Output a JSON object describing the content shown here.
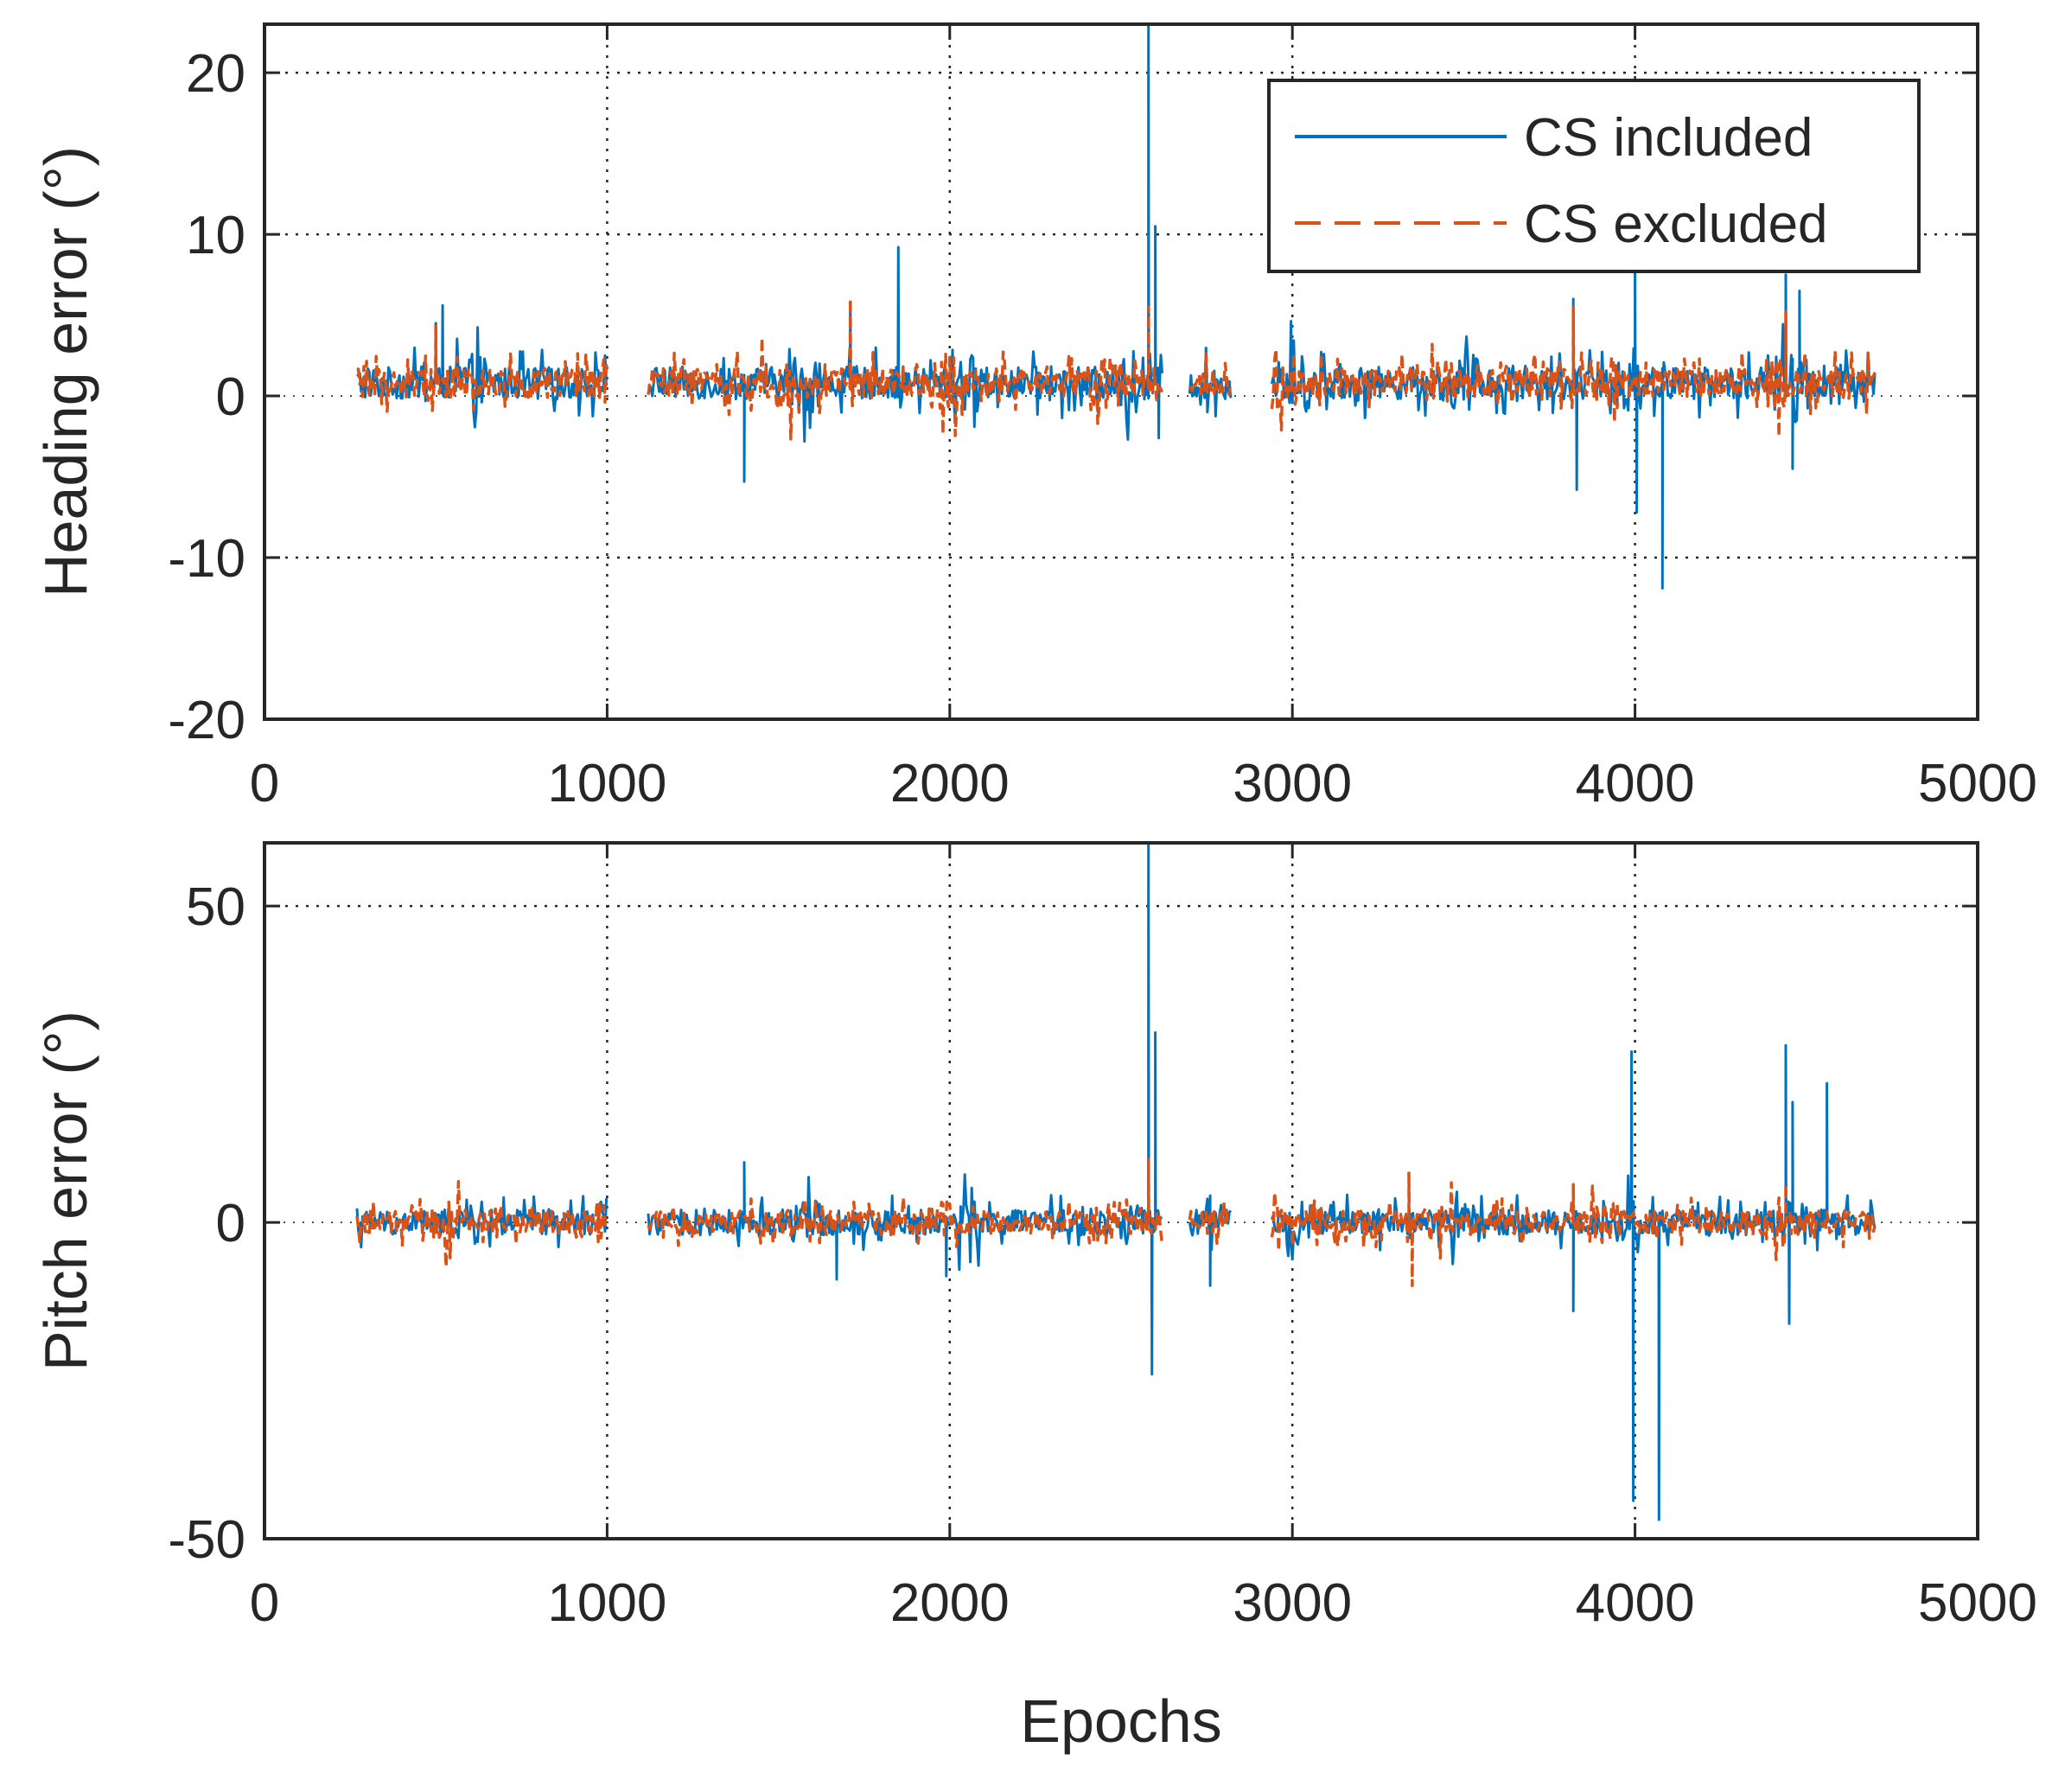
{
  "chart_data": [
    {
      "type": "line",
      "ylabel": "Heading error (°)",
      "xlabel": "",
      "xlim": [
        0,
        5000
      ],
      "ylim": [
        -20,
        23
      ],
      "xticks": [
        "0",
        "1000",
        "2000",
        "3000",
        "4000",
        "5000"
      ],
      "yticks": [
        "-20",
        "-10",
        "0",
        "10",
        "20"
      ],
      "grid": true,
      "legend": {
        "placement": "top-right",
        "entries": [
          "CS included",
          "CS excluded"
        ]
      },
      "series": [
        {
          "name": "CS included",
          "color": "#0072BD",
          "style": "solid"
        },
        {
          "name": "CS excluded",
          "color": "#D95319",
          "style": "dashed"
        }
      ],
      "segments": [
        [
          270,
          1000
        ],
        [
          1120,
          2620
        ],
        [
          2700,
          2820
        ],
        [
          2940,
          4700
        ]
      ],
      "base_level": 0.8,
      "noise_amplitude": 1.0,
      "peaks": {
        "CS included": [
          [
            500,
            4.5
          ],
          [
            520,
            5.6
          ],
          [
            1400,
            -5.3
          ],
          [
            1710,
            5.8
          ],
          [
            1850,
            9.2
          ],
          [
            2580,
            23.0
          ],
          [
            2600,
            10.5
          ],
          [
            2610,
            -2.6
          ],
          [
            3820,
            6.0
          ],
          [
            3830,
            -5.8
          ],
          [
            4000,
            8.0
          ],
          [
            4005,
            -7.2
          ],
          [
            4080,
            -11.9
          ],
          [
            4440,
            7.5
          ],
          [
            4460,
            -4.5
          ],
          [
            4480,
            6.5
          ]
        ],
        "CS excluded": [
          [
            500,
            4.3
          ],
          [
            1710,
            6.0
          ],
          [
            2580,
            5.5
          ],
          [
            3820,
            5.5
          ],
          [
            4440,
            5.2
          ]
        ]
      }
    },
    {
      "type": "line",
      "ylabel": "Pitch error (°)",
      "xlabel": "Epochs",
      "xlim": [
        0,
        5000
      ],
      "ylim": [
        -50,
        60
      ],
      "xticks": [
        "0",
        "1000",
        "2000",
        "3000",
        "4000",
        "5000"
      ],
      "yticks": [
        "-50",
        "0",
        "50"
      ],
      "grid": true,
      "series": [
        {
          "name": "CS included",
          "color": "#0072BD",
          "style": "solid"
        },
        {
          "name": "CS excluded",
          "color": "#D95319",
          "style": "dashed"
        }
      ],
      "segments": [
        [
          270,
          1000
        ],
        [
          1120,
          2620
        ],
        [
          2700,
          2820
        ],
        [
          2940,
          4700
        ]
      ],
      "base_level": 0,
      "noise_amplitude": 2.0,
      "peaks": {
        "CS included": [
          [
            1400,
            9.5
          ],
          [
            1670,
            -9.0
          ],
          [
            1990,
            -8.5
          ],
          [
            2580,
            60.0
          ],
          [
            2590,
            -24.0
          ],
          [
            2600,
            30.0
          ],
          [
            2760,
            -10.0
          ],
          [
            3820,
            -14.0
          ],
          [
            3990,
            27.0
          ],
          [
            3995,
            -44.0
          ],
          [
            4070,
            -47.0
          ],
          [
            4440,
            28.0
          ],
          [
            4450,
            -16.0
          ],
          [
            4460,
            19.0
          ],
          [
            4560,
            22.0
          ]
        ],
        "CS excluded": [
          [
            2580,
            10.0
          ],
          [
            3340,
            8.0
          ],
          [
            3350,
            -10.0
          ],
          [
            3820,
            6.0
          ],
          [
            4440,
            6.0
          ]
        ]
      }
    }
  ]
}
